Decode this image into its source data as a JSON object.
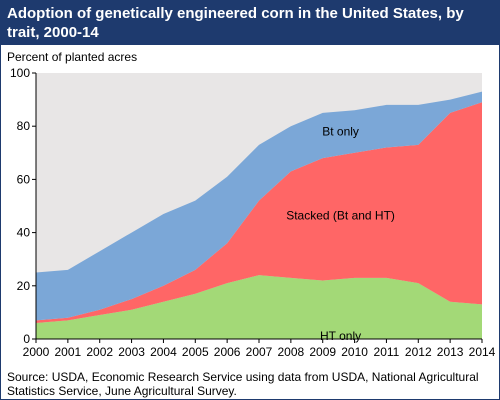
{
  "title": "Adoption of genetically engineered corn in the United States, by trait, 2000-14",
  "source": "Source: USDA, Economic Research Service using data from USDA, National Agricultural Statistics Service, June Agricultural Survey.",
  "colors": {
    "header": "#1e3a6e",
    "plot_bg": "#e8e6e6",
    "ht_only": "#a3d977",
    "stacked": "#ff6666",
    "bt_only": "#7ba7d7"
  },
  "chart_data": {
    "type": "area",
    "stacked": true,
    "ylabel": "Percent of planted acres",
    "xlabel": "",
    "ylim": [
      0,
      100
    ],
    "yticks": [
      0,
      20,
      40,
      60,
      80,
      100
    ],
    "x": [
      "2000",
      "2001",
      "2002",
      "2003",
      "2004",
      "2005",
      "2006",
      "2007",
      "2008",
      "2009",
      "2010",
      "2011",
      "2012",
      "2013",
      "2014"
    ],
    "series": [
      {
        "name": "HT only",
        "values": [
          6,
          7,
          9,
          11,
          14,
          17,
          21,
          24,
          23,
          22,
          23,
          23,
          21,
          14,
          13
        ]
      },
      {
        "name": "Stacked (Bt and HT)",
        "values": [
          1,
          1,
          2,
          4,
          6,
          9,
          15,
          28,
          40,
          46,
          47,
          49,
          52,
          71,
          76
        ]
      },
      {
        "name": "Bt only",
        "values": [
          18,
          18,
          22,
          25,
          27,
          26,
          25,
          21,
          17,
          17,
          16,
          16,
          15,
          5,
          4
        ]
      }
    ],
    "grid": false,
    "legend": "labels inside areas"
  }
}
